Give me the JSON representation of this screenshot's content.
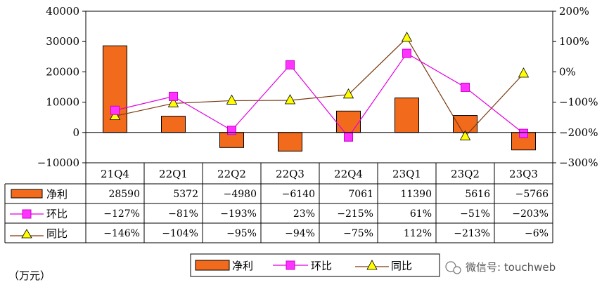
{
  "chart_data": {
    "type": "bar",
    "categories": [
      "21Q4",
      "22Q1",
      "22Q2",
      "22Q3",
      "22Q4",
      "23Q1",
      "23Q2",
      "23Q3"
    ],
    "series": [
      {
        "name": "净利",
        "kind": "bar",
        "axis": "left",
        "values": [
          28590,
          5372,
          -4980,
          -6140,
          7061,
          11390,
          5616,
          -5766
        ],
        "labels": [
          "28590",
          "5372",
          "−4980",
          "−6140",
          "7061",
          "11390",
          "5616",
          "−5766"
        ],
        "color": "#f26a1b"
      },
      {
        "name": "环比",
        "kind": "line",
        "axis": "right",
        "values": [
          -127,
          -81,
          -193,
          23,
          -215,
          61,
          -51,
          -203
        ],
        "labels": [
          "−127%",
          "−81%",
          "−193%",
          "23%",
          "−215%",
          "61%",
          "−51%",
          "−203%"
        ],
        "color": "#e000e0"
      },
      {
        "name": "同比",
        "kind": "line",
        "axis": "right",
        "values": [
          -146,
          -104,
          -95,
          -94,
          -75,
          112,
          -213,
          -6
        ],
        "labels": [
          "−146%",
          "−104%",
          "−95%",
          "−94%",
          "−75%",
          "112%",
          "−213%",
          "−6%"
        ],
        "color": "#7a3a10"
      }
    ],
    "y_left": {
      "min": -10000,
      "max": 40000,
      "step": 10000,
      "ticks": [
        "−10000",
        "0",
        "10000",
        "20000",
        "30000",
        "40000"
      ]
    },
    "y_right": {
      "min": -300,
      "max": 200,
      "step": 100,
      "ticks": [
        "−300%",
        "−200%",
        "−100%",
        "0%",
        "100%",
        "200%"
      ]
    },
    "unit_label": "（万元）",
    "legend": [
      "净利",
      "环比",
      "同比"
    ],
    "legend_position": "bottom"
  },
  "watermark": "微信号: touchweb"
}
